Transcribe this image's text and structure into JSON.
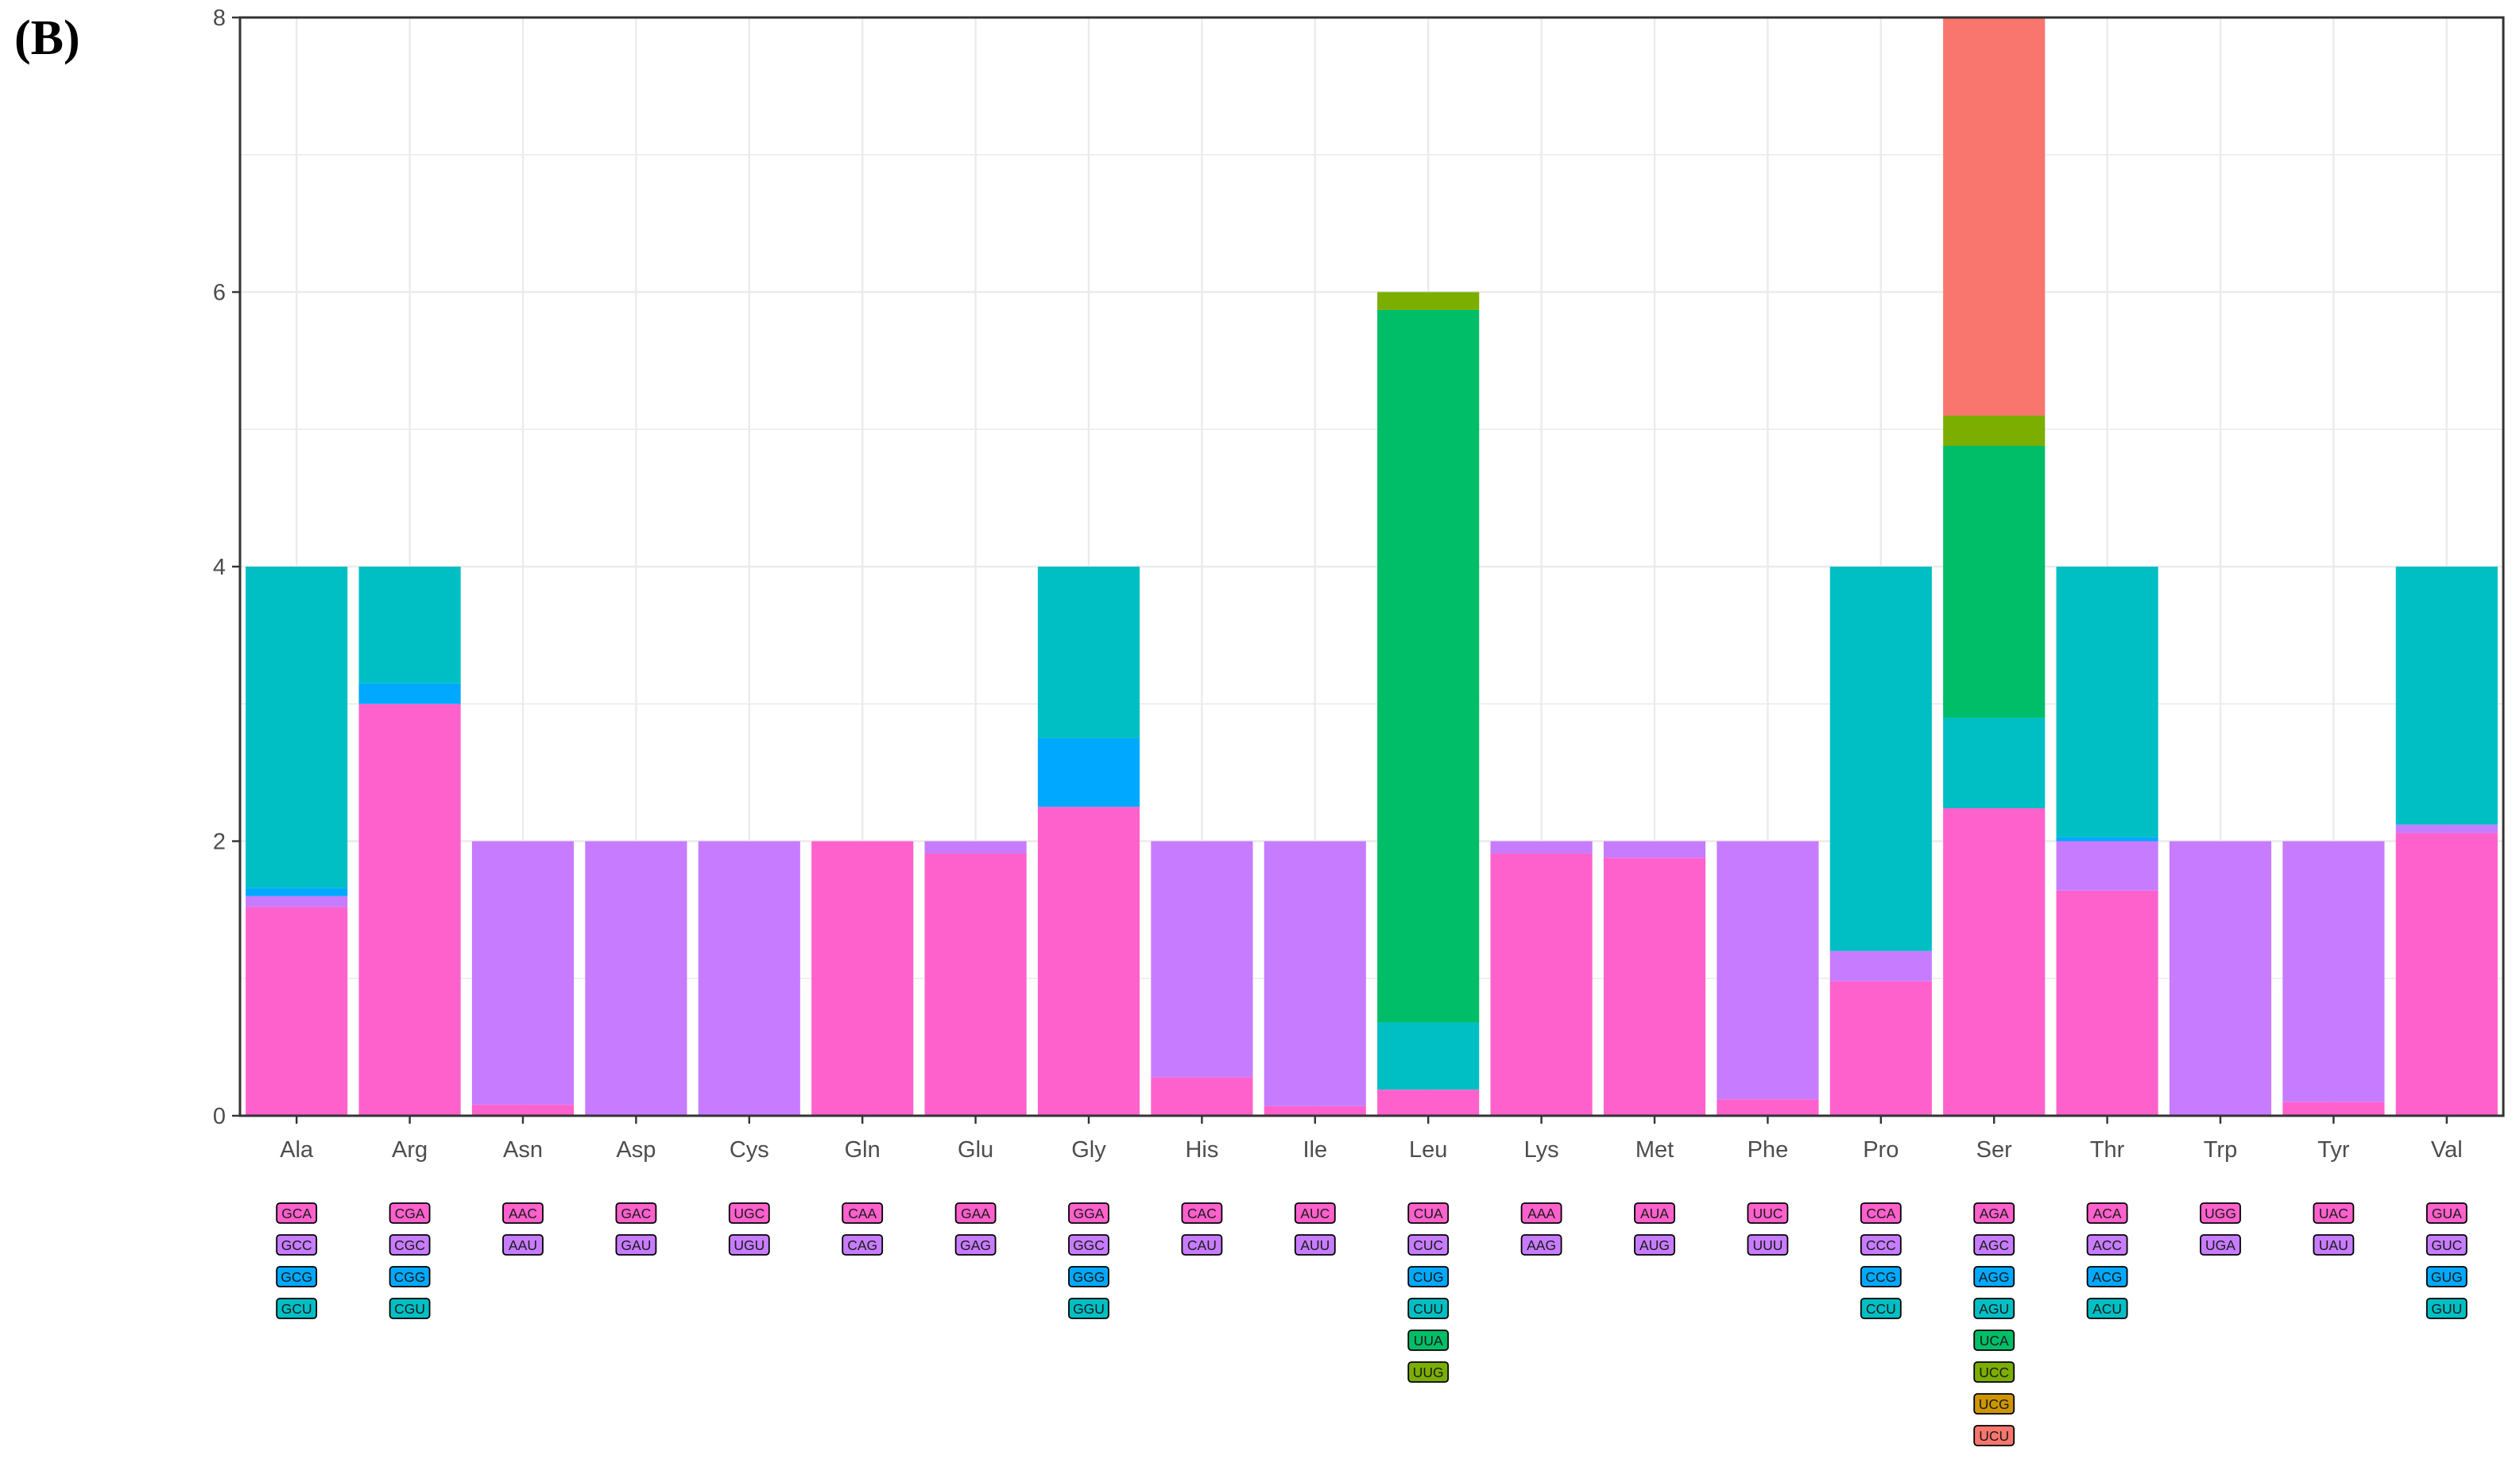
{
  "panel_label": "(B)",
  "chart_data": {
    "type": "bar",
    "stacked": true,
    "title": "",
    "xlabel": "",
    "ylabel": "",
    "ylim": [
      0,
      8
    ],
    "yticks": [
      0,
      2,
      4,
      6,
      8
    ],
    "grid": true,
    "legend": "per-category codon labels below each bar",
    "categories": [
      "Ala",
      "Arg",
      "Asn",
      "Asp",
      "Cys",
      "Gln",
      "Glu",
      "Gly",
      "His",
      "Ile",
      "Leu",
      "Lys",
      "Met",
      "Phe",
      "Pro",
      "Ser",
      "Thr",
      "Trp",
      "Tyr",
      "Val"
    ],
    "slot_colors": [
      "#ff61cc",
      "#c77cff",
      "#00a9ff",
      "#00bfc4",
      "#00be67",
      "#7cae00",
      "#cd9600",
      "#f8766d"
    ],
    "bars": [
      {
        "category": "Ala",
        "codons": [
          {
            "codon": "GCA",
            "value": 1.52
          },
          {
            "codon": "GCC",
            "value": 0.08
          },
          {
            "codon": "GCG",
            "value": 0.06
          },
          {
            "codon": "GCU",
            "value": 2.34
          }
        ]
      },
      {
        "category": "Arg",
        "codons": [
          {
            "codon": "CGA",
            "value": 3.0
          },
          {
            "codon": "CGC",
            "value": 0.0
          },
          {
            "codon": "CGG",
            "value": 0.15
          },
          {
            "codon": "CGU",
            "value": 0.85
          }
        ]
      },
      {
        "category": "Asn",
        "codons": [
          {
            "codon": "AAC",
            "value": 0.08
          },
          {
            "codon": "AAU",
            "value": 1.92
          }
        ]
      },
      {
        "category": "Asp",
        "codons": [
          {
            "codon": "GAC",
            "value": 0.0
          },
          {
            "codon": "GAU",
            "value": 2.0
          }
        ]
      },
      {
        "category": "Cys",
        "codons": [
          {
            "codon": "UGC",
            "value": 0.0
          },
          {
            "codon": "UGU",
            "value": 2.0
          }
        ]
      },
      {
        "category": "Gln",
        "codons": [
          {
            "codon": "CAA",
            "value": 2.0
          },
          {
            "codon": "CAG",
            "value": 0.0
          }
        ]
      },
      {
        "category": "Glu",
        "codons": [
          {
            "codon": "GAA",
            "value": 1.91
          },
          {
            "codon": "GAG",
            "value": 0.09
          }
        ]
      },
      {
        "category": "Gly",
        "codons": [
          {
            "codon": "GGA",
            "value": 2.25
          },
          {
            "codon": "GGC",
            "value": 0.0
          },
          {
            "codon": "GGG",
            "value": 0.5
          },
          {
            "codon": "GGU",
            "value": 1.25
          }
        ]
      },
      {
        "category": "His",
        "codons": [
          {
            "codon": "CAC",
            "value": 0.28
          },
          {
            "codon": "CAU",
            "value": 1.72
          }
        ]
      },
      {
        "category": "Ile",
        "codons": [
          {
            "codon": "AUC",
            "value": 0.07
          },
          {
            "codon": "AUU",
            "value": 1.93
          }
        ]
      },
      {
        "category": "Leu",
        "codons": [
          {
            "codon": "CUA",
            "value": 0.19
          },
          {
            "codon": "CUC",
            "value": 0.0
          },
          {
            "codon": "CUG",
            "value": 0.0
          },
          {
            "codon": "CUU",
            "value": 0.49
          },
          {
            "codon": "UUA",
            "value": 5.19
          },
          {
            "codon": "UUG",
            "value": 0.13
          }
        ]
      },
      {
        "category": "Lys",
        "codons": [
          {
            "codon": "AAA",
            "value": 1.91
          },
          {
            "codon": "AAG",
            "value": 0.09
          }
        ]
      },
      {
        "category": "Met",
        "codons": [
          {
            "codon": "AUA",
            "value": 1.88
          },
          {
            "codon": "AUG",
            "value": 0.12
          }
        ]
      },
      {
        "category": "Phe",
        "codons": [
          {
            "codon": "UUC",
            "value": 0.12
          },
          {
            "codon": "UUU",
            "value": 1.88
          }
        ]
      },
      {
        "category": "Pro",
        "codons": [
          {
            "codon": "CCA",
            "value": 0.98
          },
          {
            "codon": "CCC",
            "value": 0.22
          },
          {
            "codon": "CCG",
            "value": 0.0
          },
          {
            "codon": "CCU",
            "value": 2.8
          }
        ]
      },
      {
        "category": "Ser",
        "codons": [
          {
            "codon": "AGA",
            "value": 2.24
          },
          {
            "codon": "AGC",
            "value": 0.0
          },
          {
            "codon": "AGG",
            "value": 0.0
          },
          {
            "codon": "AGU",
            "value": 0.66
          },
          {
            "codon": "UCA",
            "value": 1.98
          },
          {
            "codon": "UCC",
            "value": 0.22
          },
          {
            "codon": "UCG",
            "value": 0.0
          },
          {
            "codon": "UCU",
            "value": 2.9
          }
        ]
      },
      {
        "category": "Thr",
        "codons": [
          {
            "codon": "ACA",
            "value": 1.64
          },
          {
            "codon": "ACC",
            "value": 0.36
          },
          {
            "codon": "ACG",
            "value": 0.03
          },
          {
            "codon": "ACU",
            "value": 1.97
          }
        ]
      },
      {
        "category": "Trp",
        "codons": [
          {
            "codon": "UGG",
            "value": 0.0
          },
          {
            "codon": "UGA",
            "value": 2.0
          }
        ]
      },
      {
        "category": "Tyr",
        "codons": [
          {
            "codon": "UAC",
            "value": 0.1
          },
          {
            "codon": "UAU",
            "value": 1.9
          }
        ]
      },
      {
        "category": "Val",
        "codons": [
          {
            "codon": "GUA",
            "value": 2.06
          },
          {
            "codon": "GUC",
            "value": 0.06
          },
          {
            "codon": "GUG",
            "value": 0.0
          },
          {
            "codon": "GUU",
            "value": 1.88
          }
        ]
      }
    ]
  }
}
